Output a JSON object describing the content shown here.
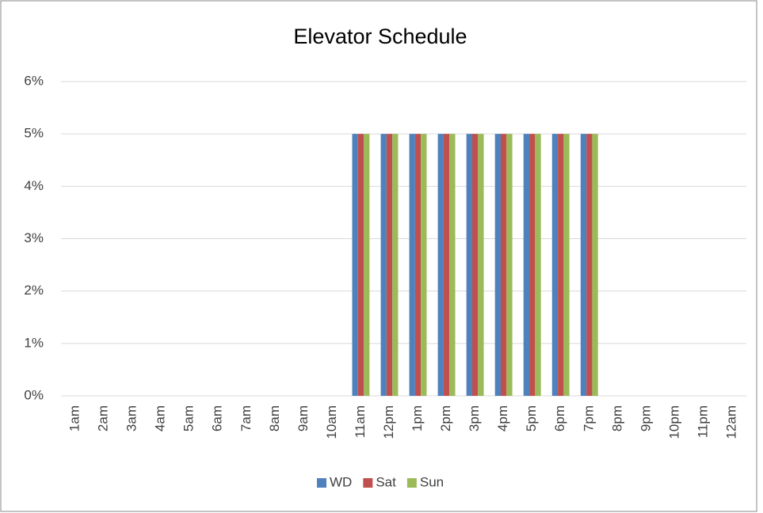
{
  "chart_data": {
    "type": "bar",
    "title": "Elevator Schedule",
    "categories": [
      "1am",
      "2am",
      "3am",
      "4am",
      "5am",
      "6am",
      "7am",
      "8am",
      "9am",
      "10am",
      "11am",
      "12pm",
      "1pm",
      "2pm",
      "3pm",
      "4pm",
      "5pm",
      "6pm",
      "7pm",
      "8pm",
      "9pm",
      "10pm",
      "11pm",
      "12am"
    ],
    "series": [
      {
        "name": "WD",
        "color": "#4f81bd",
        "values": [
          0,
          0,
          0,
          0,
          0,
          0,
          0,
          0,
          0,
          0,
          5,
          5,
          5,
          5,
          5,
          5,
          5,
          5,
          5,
          0,
          0,
          0,
          0,
          0
        ]
      },
      {
        "name": "Sat",
        "color": "#c0504d",
        "values": [
          0,
          0,
          0,
          0,
          0,
          0,
          0,
          0,
          0,
          0,
          5,
          5,
          5,
          5,
          5,
          5,
          5,
          5,
          5,
          0,
          0,
          0,
          0,
          0
        ]
      },
      {
        "name": "Sun",
        "color": "#9bbb59",
        "values": [
          0,
          0,
          0,
          0,
          0,
          0,
          0,
          0,
          0,
          0,
          5,
          5,
          5,
          5,
          5,
          5,
          5,
          5,
          5,
          0,
          0,
          0,
          0,
          0
        ]
      }
    ],
    "ylim": [
      0,
      6
    ],
    "yticks": [
      {
        "value": 0,
        "label": "0%"
      },
      {
        "value": 1,
        "label": "1%"
      },
      {
        "value": 2,
        "label": "2%"
      },
      {
        "value": 3,
        "label": "3%"
      },
      {
        "value": 4,
        "label": "4%"
      },
      {
        "value": 5,
        "label": "5%"
      },
      {
        "value": 6,
        "label": "6%"
      }
    ],
    "grid": true,
    "legend": "bottom"
  }
}
